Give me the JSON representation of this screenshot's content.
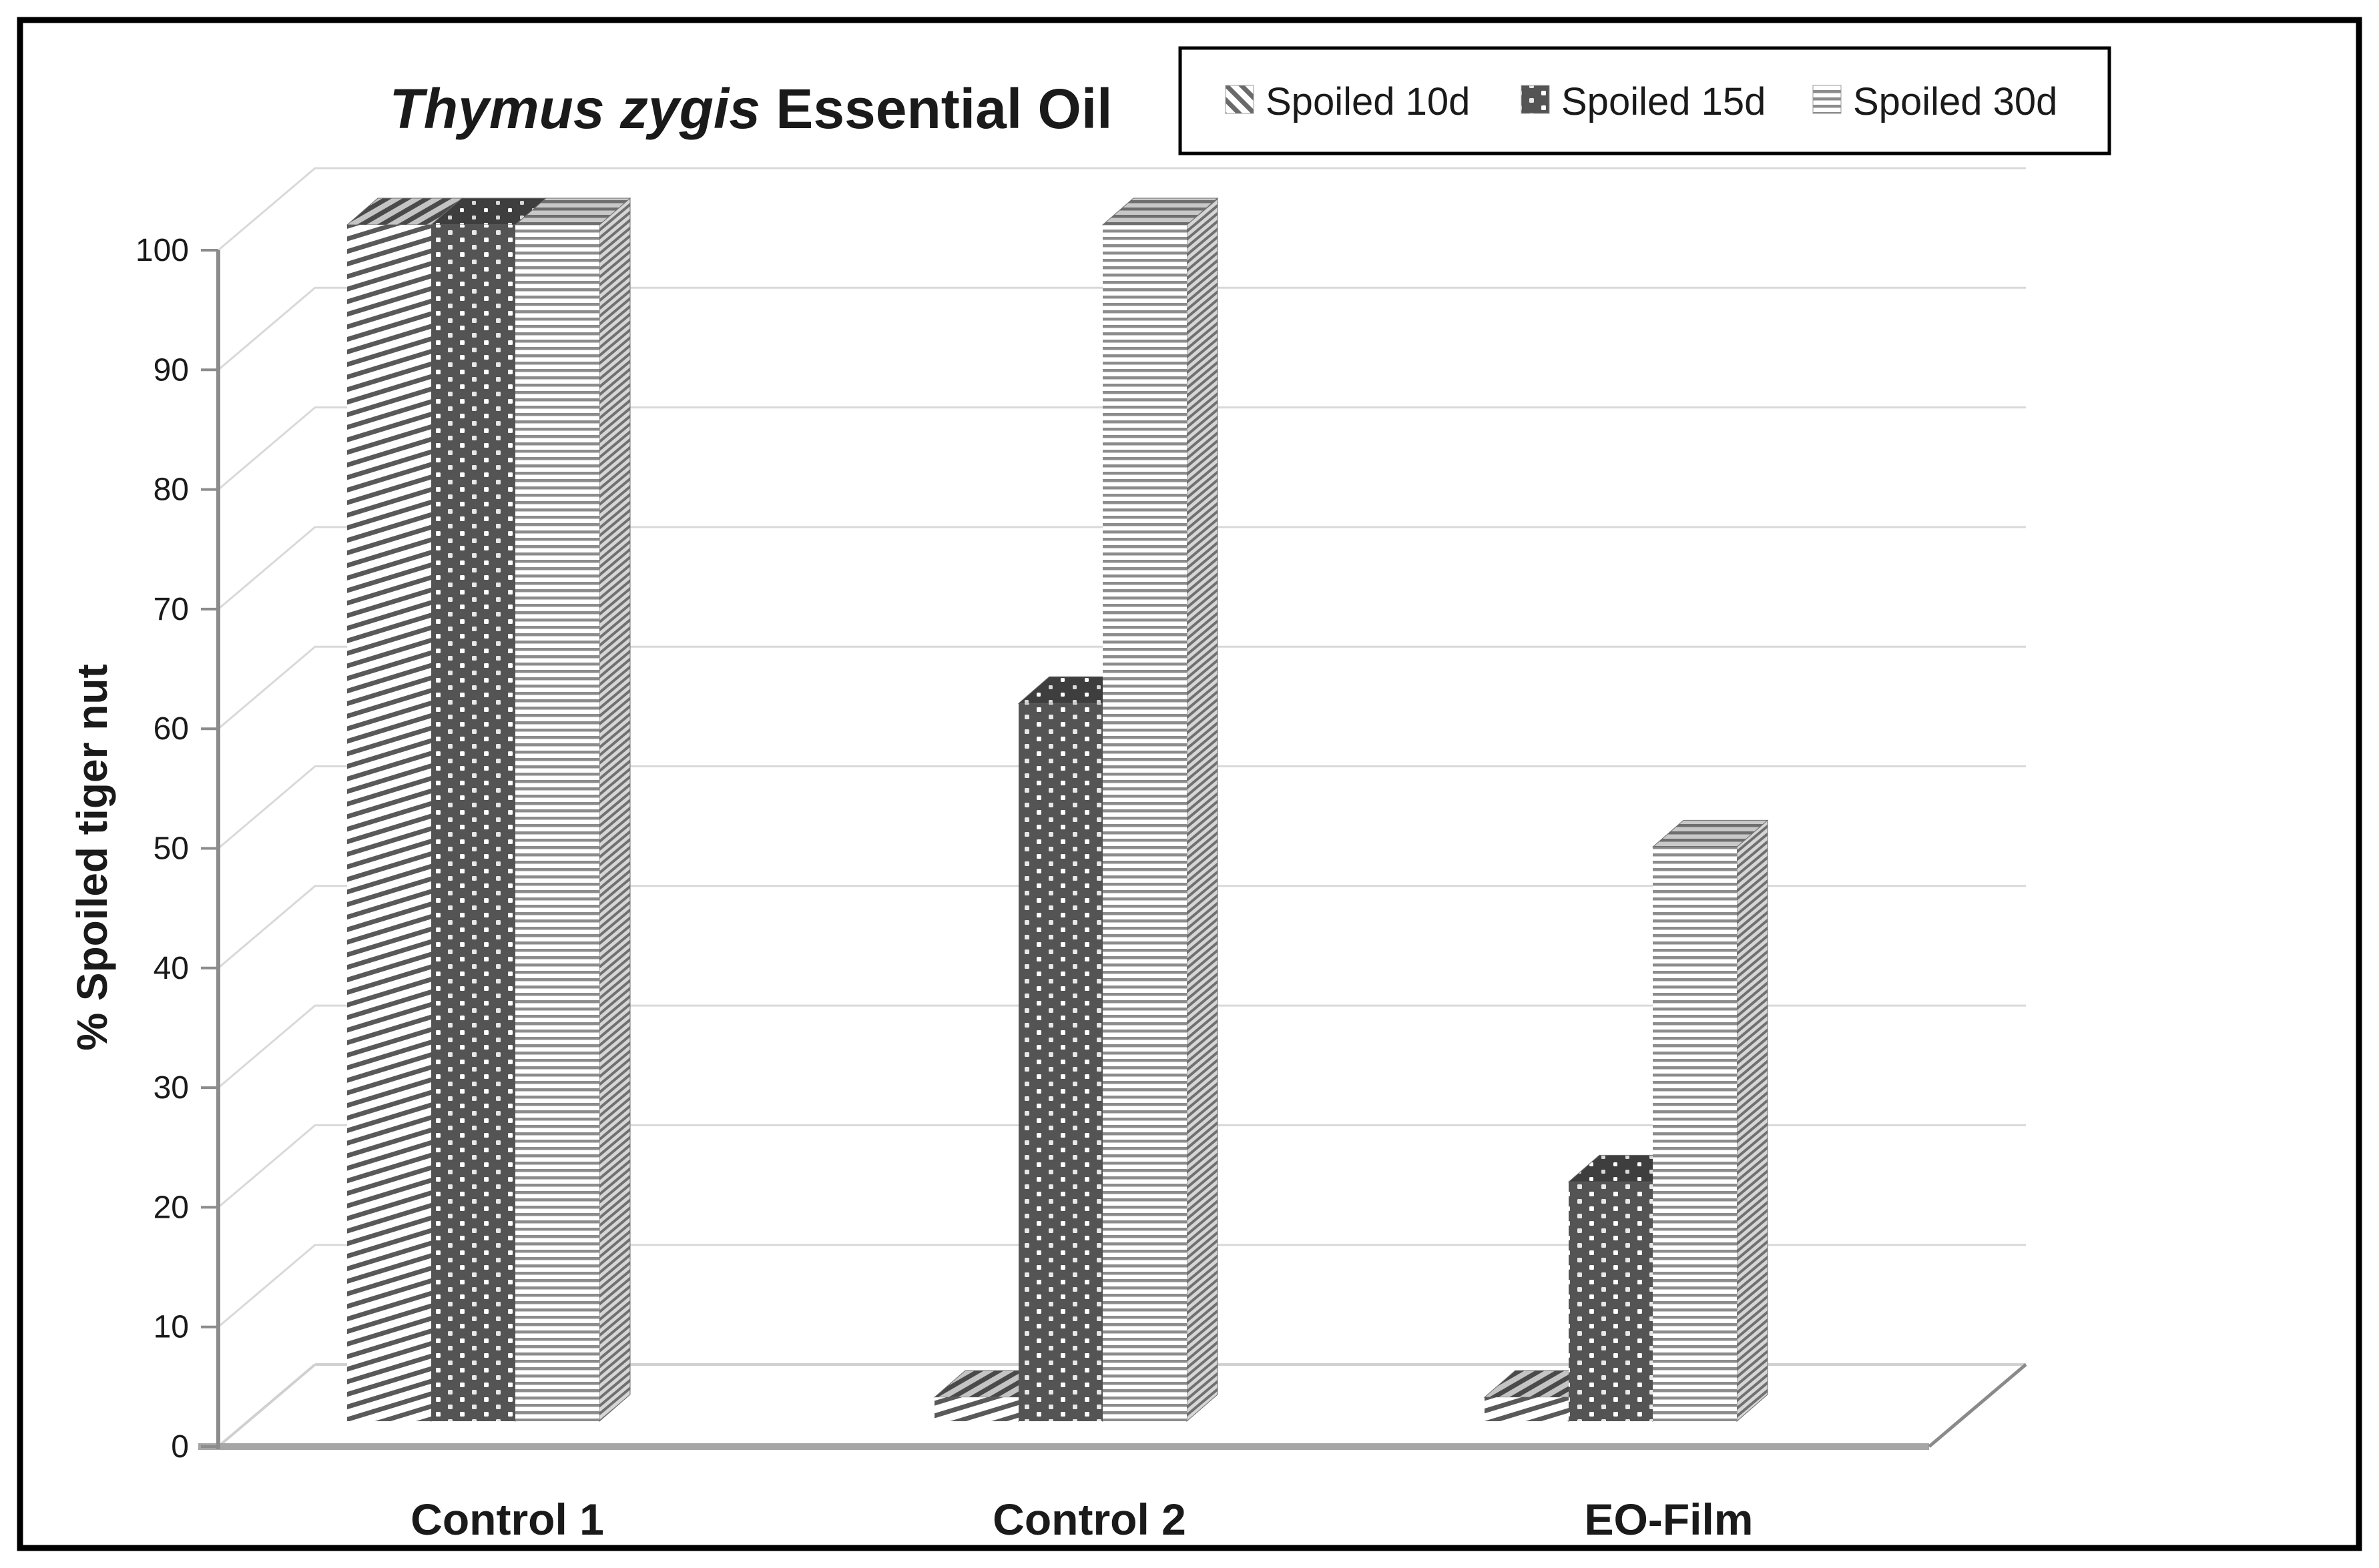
{
  "page": {
    "background": "#ffffff",
    "border_color": "#000000"
  },
  "chart_data": {
    "type": "bar",
    "projection": "3d-clustered-column",
    "title": {
      "italic_part": "Thymus zygis",
      "regular_part": " Essential Oil"
    },
    "ylabel": "% Spoiled tiger nut",
    "xlabel": "",
    "categories": [
      "Control 1",
      "Control 2",
      "EO-Film"
    ],
    "series": [
      {
        "name": "Spoiled 10d",
        "pattern": "diagonal-stripes",
        "values": [
          100,
          2,
          2
        ]
      },
      {
        "name": "Spoiled 15d",
        "pattern": "dark-dots",
        "values": [
          100,
          60,
          20
        ]
      },
      {
        "name": "Spoiled 30d",
        "pattern": "horizontal-lines",
        "values": [
          100,
          100,
          48
        ]
      }
    ],
    "ylim": [
      0,
      100
    ],
    "ytick_step": 10,
    "grid": true,
    "legend_position": "top-right",
    "colors": {
      "pattern_dark": "#595959",
      "pattern_mid": "#8c8c8c",
      "gridline": "#d9d9d9",
      "axis_line": "#8c8c8c",
      "floor_front": "#a6a6a6",
      "text": "#1a1a1a"
    }
  }
}
